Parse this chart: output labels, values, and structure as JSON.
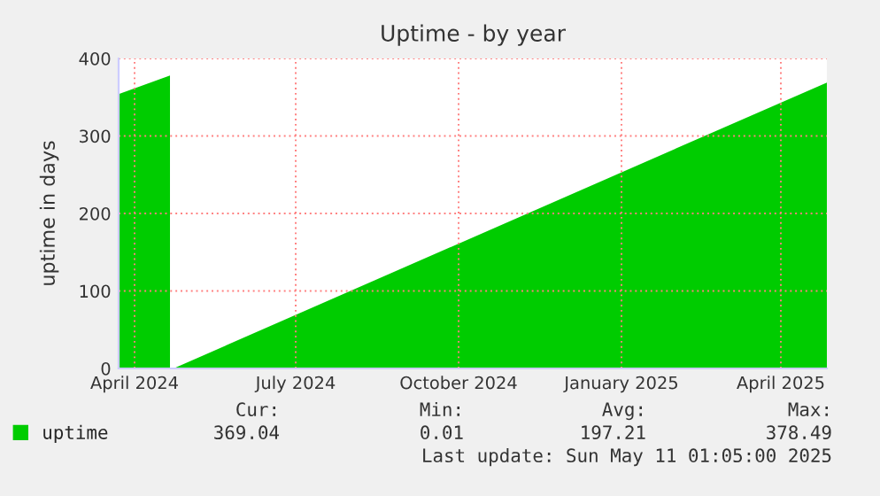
{
  "chart_data": {
    "type": "area",
    "title": "Uptime - by year",
    "ylabel": "uptime in days",
    "x": [
      "2024-04-06",
      "2024-05-05",
      "2024-05-06",
      "2024-05-07",
      "2024-11-01",
      "2025-05-11"
    ],
    "series": [
      {
        "name": "uptime",
        "color": "#00cc00",
        "values": [
          354,
          378,
          null,
          0,
          178,
          369
        ]
      }
    ],
    "xlim": [
      "2024-04-06",
      "2025-05-11"
    ],
    "xticks": [
      {
        "value": "2024-04-15",
        "label": "April 2024"
      },
      {
        "value": "2024-07-15",
        "label": "July 2024"
      },
      {
        "value": "2024-10-15",
        "label": "October 2024"
      },
      {
        "value": "2025-01-15",
        "label": "January 2025"
      },
      {
        "value": "2025-04-15",
        "label": "April 2025"
      }
    ],
    "ylim": [
      0,
      400
    ],
    "yticks": [
      0,
      100,
      200,
      300,
      400
    ],
    "grid": true,
    "legend": "bottom left",
    "annotations": [
      "Cur:",
      "Min:",
      "Avg:",
      "Max:",
      "369.04",
      "0.01",
      "197.21",
      "378.49",
      "Last update: Sun May 11 01:05:00 2025"
    ]
  }
}
